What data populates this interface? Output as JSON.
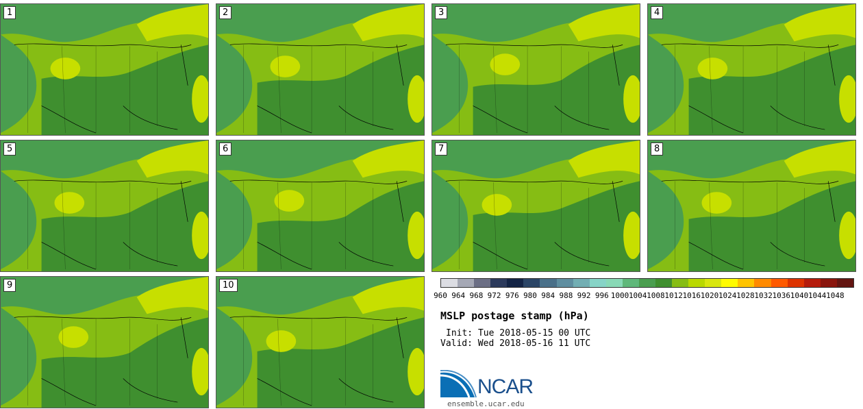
{
  "panels": [
    {
      "label": "1"
    },
    {
      "label": "2"
    },
    {
      "label": "3"
    },
    {
      "label": "4"
    },
    {
      "label": "5"
    },
    {
      "label": "6"
    },
    {
      "label": "7"
    },
    {
      "label": "8"
    },
    {
      "label": "9"
    },
    {
      "label": "10"
    }
  ],
  "colorbar": {
    "colors": [
      "#dcdde3",
      "#a5a8b5",
      "#6c6f85",
      "#2c3a5c",
      "#142445",
      "#2b4566",
      "#4a7089",
      "#5f8ea0",
      "#72aeb3",
      "#86d4c7",
      "#88d9b6",
      "#5fb87a",
      "#4a9e4f",
      "#3f8f2f",
      "#86bd14",
      "#b9d800",
      "#d8e60f",
      "#fffb00",
      "#ffc400",
      "#ff8a00",
      "#ff5a00",
      "#dd3300",
      "#b51b0c",
      "#8a150d",
      "#631511"
    ],
    "ticks": [
      "960",
      "964",
      "968",
      "972",
      "976",
      "980",
      "984",
      "988",
      "992",
      "996",
      "1000",
      "1004",
      "1008",
      "1012",
      "1016",
      "1020",
      "1024",
      "1028",
      "1032",
      "1036",
      "1040",
      "1044",
      "1048"
    ]
  },
  "title": "MSLP postage stamp (hPa)",
  "init_line": "Init: Tue 2018-05-15 00 UTC",
  "valid_line": "Valid: Wed 2018-05-16 11 UTC",
  "logo": {
    "text": "NCAR",
    "url": "ensemble.ucar.edu"
  },
  "colors": {
    "field_dark": "#3f8f2f",
    "field_mid": "#4a9e4f",
    "field_light": "#86bd14",
    "field_pale": "#c7df00",
    "field_teal": "#5fb87a"
  }
}
